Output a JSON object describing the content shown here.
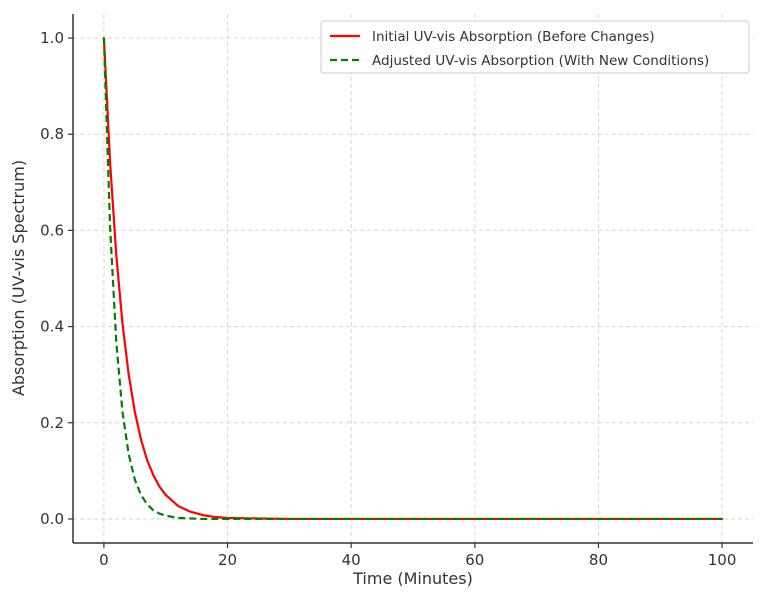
{
  "chart_data": {
    "type": "line",
    "title": "",
    "xlabel": "Time (Minutes)",
    "ylabel": "Absorption (UV-vis Spectrum)",
    "xlim": [
      -5,
      105
    ],
    "ylim": [
      -0.05,
      1.05
    ],
    "x_ticks": [
      0,
      20,
      40,
      60,
      80,
      100
    ],
    "x_tick_labels": [
      "0",
      "20",
      "40",
      "60",
      "80",
      "100"
    ],
    "y_ticks": [
      0.0,
      0.2,
      0.4,
      0.6,
      0.8,
      1.0
    ],
    "y_tick_labels": [
      "0.0",
      "0.2",
      "0.4",
      "0.6",
      "0.8",
      "1.0"
    ],
    "grid": true,
    "legend_position": "top-right",
    "series": [
      {
        "name": "Initial UV-vis Absorption (Before Changes)",
        "color": "#ff0000",
        "style": "solid",
        "x": [
          0,
          1,
          2,
          3,
          4,
          5,
          6,
          7,
          8,
          9,
          10,
          12,
          14,
          16,
          18,
          20,
          25,
          30,
          40,
          50,
          60,
          70,
          80,
          90,
          100
        ],
        "y": [
          1.0,
          0.741,
          0.549,
          0.407,
          0.301,
          0.223,
          0.165,
          0.122,
          0.091,
          0.067,
          0.05,
          0.027,
          0.015,
          0.008,
          0.004,
          0.002,
          0.001,
          0.0,
          0.0,
          0.0,
          0.0,
          0.0,
          0.0,
          0.0,
          0.0
        ]
      },
      {
        "name": "Adjusted UV-vis Absorption (With New Conditions)",
        "color": "#008000",
        "style": "dashed",
        "x": [
          0,
          1,
          2,
          3,
          4,
          5,
          6,
          7,
          8,
          9,
          10,
          12,
          14,
          16,
          18,
          20,
          25,
          30,
          40,
          50,
          60,
          70,
          80,
          90,
          100
        ],
        "y": [
          1.0,
          0.607,
          0.368,
          0.223,
          0.135,
          0.082,
          0.05,
          0.03,
          0.018,
          0.011,
          0.007,
          0.002,
          0.001,
          0.0,
          0.0,
          0.0,
          0.0,
          0.0,
          0.0,
          0.0,
          0.0,
          0.0,
          0.0,
          0.0,
          0.0
        ]
      }
    ]
  }
}
